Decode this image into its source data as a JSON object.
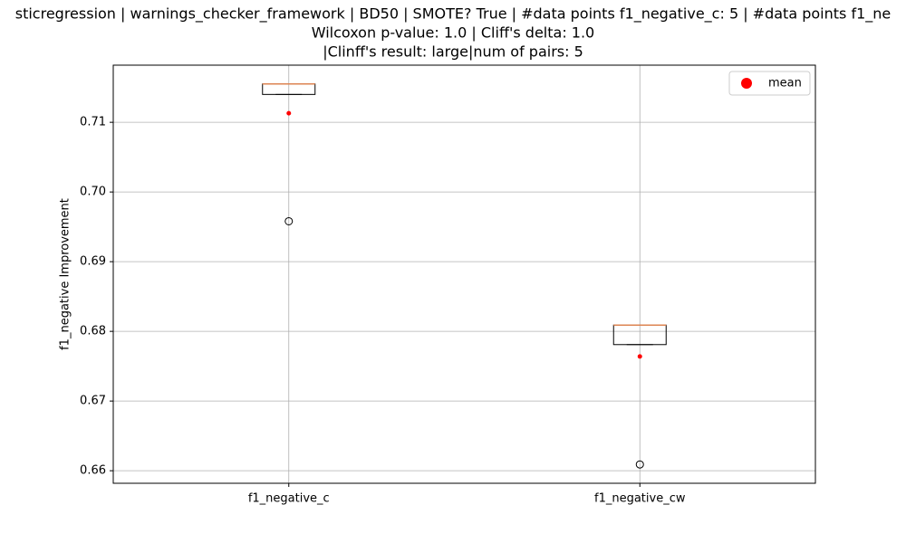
{
  "chart_data": {
    "type": "box",
    "title_lines": [
      "sticregression | warnings_checker_framework | BD50 | SMOTE? True | #data points f1_negative_c: 5 | #data points f1_ne",
      "Wilcoxon p-value: 1.0 | Cliff's delta: 1.0",
      "|Clinff's result: large|num of pairs: 5"
    ],
    "y_label": "f1_negative Improvement",
    "categories": [
      "f1_negative_c",
      "f1_negative_cw"
    ],
    "boxes": [
      {
        "whislo": 0.714,
        "q1": 0.714,
        "med": 0.7155,
        "q3": 0.7155,
        "whishi": 0.7155,
        "fliers": [
          0.6958
        ],
        "mean": 0.7113
      },
      {
        "whislo": 0.6781,
        "q1": 0.6781,
        "med": 0.6809,
        "q3": 0.6809,
        "whishi": 0.6809,
        "fliers": [
          0.6609
        ],
        "mean": 0.6764
      }
    ],
    "mean_color": "red",
    "median_color": "#dd8452",
    "legend": {
      "label": "mean",
      "position": "upper right"
    },
    "ylim": [
      0.6582,
      0.7182
    ],
    "yticks": [
      0.66,
      0.67,
      0.68,
      0.69,
      {
        "value": 0.7,
        "label": "0.70"
      },
      0.71
    ],
    "grid": true
  }
}
